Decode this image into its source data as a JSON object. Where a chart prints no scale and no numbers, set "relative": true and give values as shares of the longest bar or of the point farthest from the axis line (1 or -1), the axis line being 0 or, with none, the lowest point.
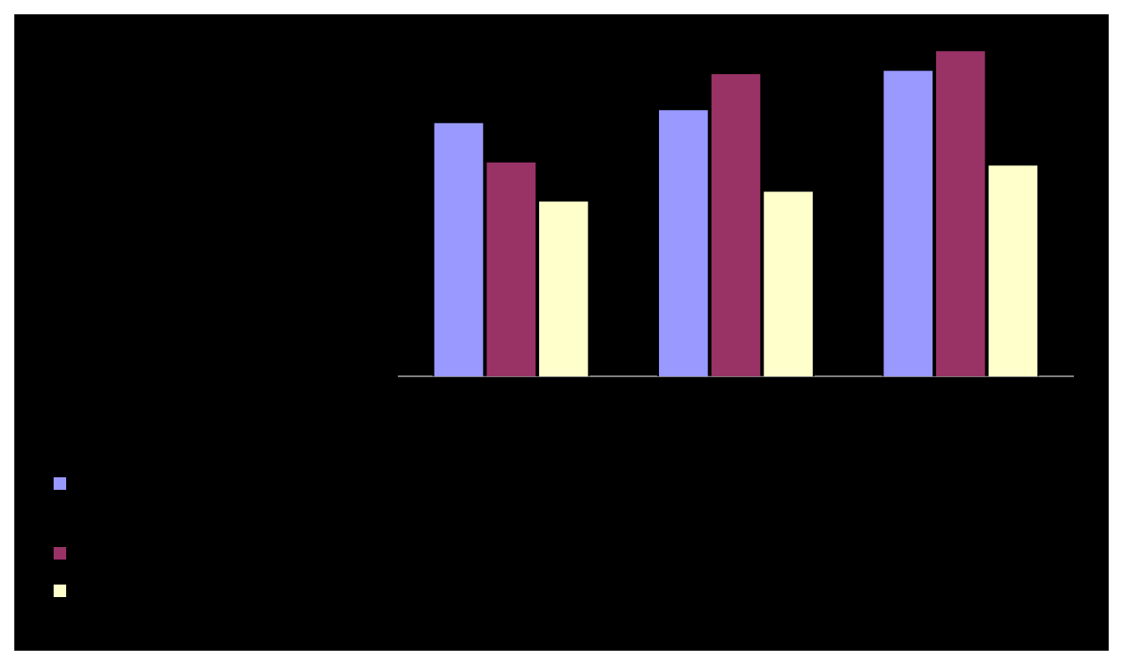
{
  "chart_data": {
    "type": "bar",
    "relative": true,
    "categories": [
      null,
      null,
      null
    ],
    "series": [
      {
        "color": "#9999ff",
        "values": [
          0.78,
          0.82,
          0.94
        ]
      },
      {
        "color": "#993366",
        "values": [
          0.66,
          0.93,
          1
        ]
      },
      {
        "color": "#ffffcc",
        "values": [
          0.54,
          0.57,
          0.65
        ]
      }
    ],
    "grid": false
  }
}
